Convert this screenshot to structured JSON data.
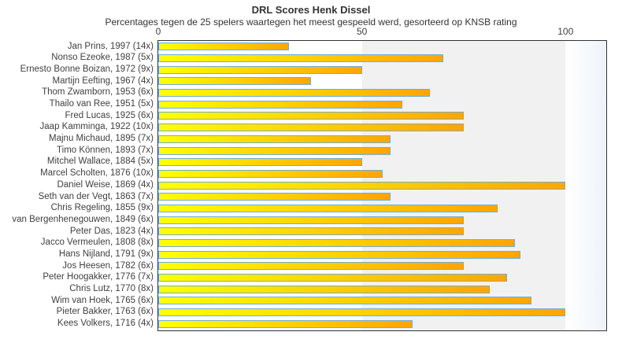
{
  "chart_data": {
    "type": "bar",
    "orientation": "horizontal",
    "title": "DRL Scores Henk Dissel",
    "subtitle": "Percentages tegen de 25 spelers waartegen het meest gespeeld werd, gesorteerd op KNSB rating",
    "xlabel": "",
    "ylabel": "",
    "xlim": [
      0,
      110
    ],
    "grid": false,
    "legend": false,
    "x_ticks": [
      {
        "value": 0,
        "label": "0"
      },
      {
        "value": 50,
        "label": "50"
      },
      {
        "value": 100,
        "label": "100"
      }
    ],
    "categories": [
      "Jan Prins, 1997 (14x)",
      "Nonso Ezeoke, 1987 (5x)",
      "Ernesto Bonne Boizan, 1972 (9x)",
      "Martijn Eefting, 1967 (4x)",
      "Thom Zwamborn, 1953 (6x)",
      "Thailo van Ree, 1951 (5x)",
      "Fred Lucas, 1925 (6x)",
      "Jaap Kamminga, 1922 (10x)",
      "Majnu Michaud, 1895 (7x)",
      "Timo Können, 1893 (7x)",
      "Mitchel Wallace, 1884 (5x)",
      "Marcel Scholten, 1876 (10x)",
      "Daniel Weise, 1869 (4x)",
      "Seth van der Vegt, 1863 (7x)",
      "Chris Regeling, 1855 (9x)",
      "van Bergenhenegouwen, 1849 (6x)",
      "Peter Das, 1823 (4x)",
      "Jacco Vermeulen, 1808 (8x)",
      "Hans Nijland, 1791 (9x)",
      "Jos Heesen, 1782 (6x)",
      "Peter Hoogakker, 1776 (7x)",
      "Chris Lutz, 1770 (8x)",
      "Wim van Hoek, 1765 (6x)",
      "Pieter Bakker, 1763 (6x)",
      "Kees Volkers, 1716 (4x)"
    ],
    "values": [
      32.1,
      70,
      50,
      37.5,
      66.7,
      60,
      75,
      75,
      57.1,
      57.1,
      50,
      55,
      100,
      57.1,
      83.3,
      75,
      75,
      87.5,
      88.9,
      75,
      85.7,
      81.3,
      91.7,
      100,
      62.5
    ],
    "bands": [
      {
        "from": 0,
        "to": 50,
        "color": "#ffffff"
      },
      {
        "from": 50,
        "to": 100,
        "color": "#f1f1f1"
      },
      {
        "from": 100,
        "to": 110,
        "color_from": "#ffffff",
        "color_to": "#eef3f9"
      }
    ],
    "colors": {
      "bar_gradient_start": "#ffff00",
      "bar_gradient_end": "#ffa500",
      "bar_border": "#72add4",
      "plot_border": "#333333",
      "text": "#404040",
      "title_text": "#333333"
    }
  }
}
